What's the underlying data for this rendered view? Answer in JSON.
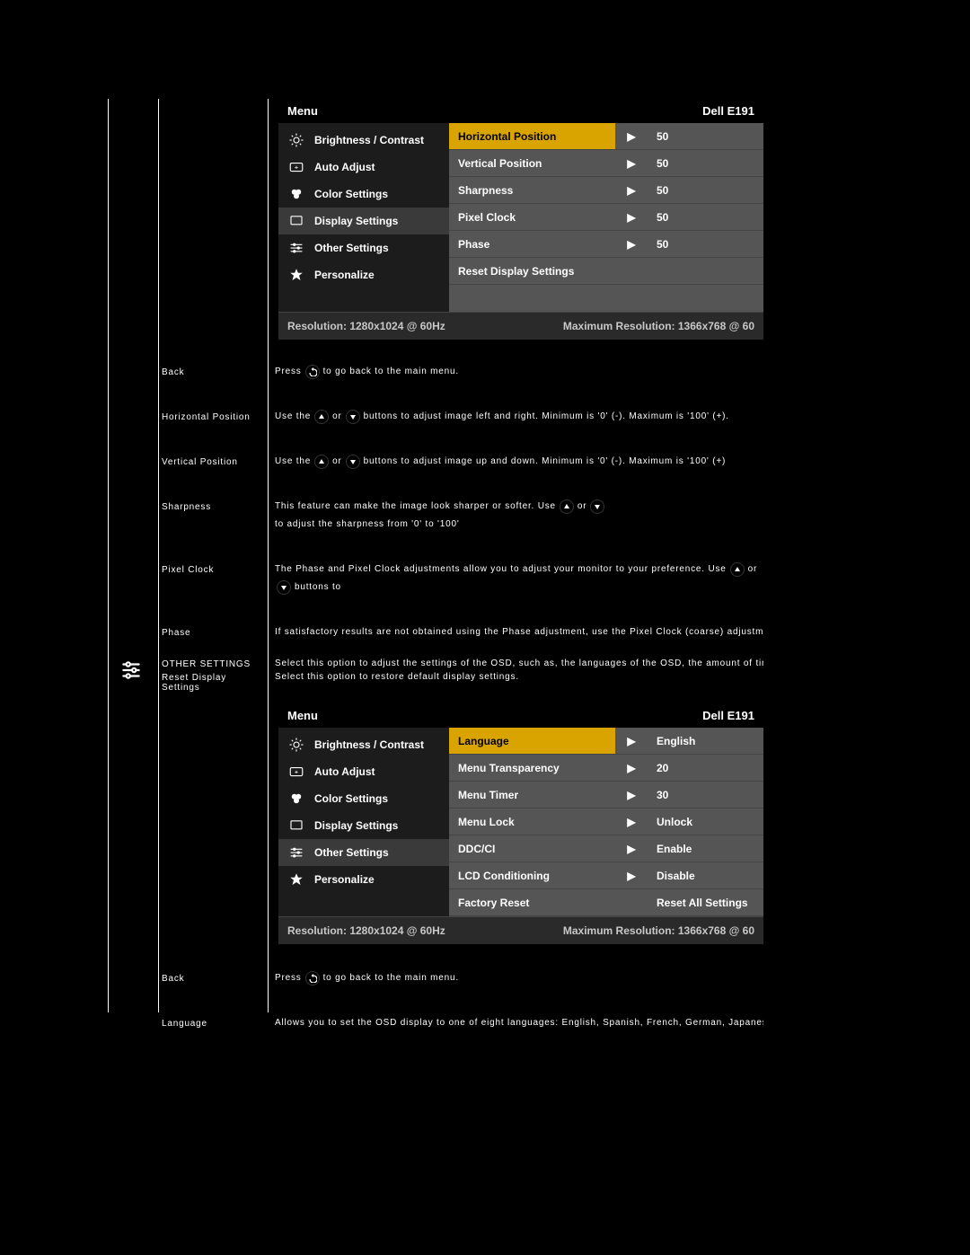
{
  "colors": {
    "page_bg": "#000000",
    "osd_bg": "#2a2a2a",
    "osd_left_bg": "#1c1c1c",
    "osd_right_bg": "#555555",
    "highlight_bg": "#d9a400",
    "highlight_text": "#000000",
    "text": "#ffffff",
    "footer_text": "#c8c8c8"
  },
  "osd_common": {
    "menu_label": "Menu",
    "model_label": "Dell E191",
    "footer_left": "Resolution: 1280x1024 @ 60Hz",
    "footer_right": "Maximum Resolution: 1366x768 @ 60",
    "left_items": [
      {
        "icon": "brightness",
        "label": "Brightness / Contrast"
      },
      {
        "icon": "auto",
        "label": "Auto Adjust"
      },
      {
        "icon": "color",
        "label": "Color Settings"
      },
      {
        "icon": "display",
        "label": "Display Settings"
      },
      {
        "icon": "other",
        "label": "Other Settings"
      },
      {
        "icon": "star",
        "label": "Personalize"
      }
    ]
  },
  "osd1": {
    "selected_index": 3,
    "right_items": [
      {
        "label": "Horizontal Position",
        "value": "50",
        "highlight": true,
        "arrow": true
      },
      {
        "label": "Vertical Position",
        "value": "50",
        "highlight": false,
        "arrow": true
      },
      {
        "label": "Sharpness",
        "value": "50",
        "highlight": false,
        "arrow": true
      },
      {
        "label": "Pixel Clock",
        "value": "50",
        "highlight": false,
        "arrow": true
      },
      {
        "label": "Phase",
        "value": "50",
        "highlight": false,
        "arrow": true
      },
      {
        "label": "Reset Display Settings",
        "value": "",
        "highlight": false,
        "arrow": false
      }
    ]
  },
  "osd2": {
    "selected_index": 4,
    "right_items": [
      {
        "label": "Language",
        "value": "English",
        "highlight": true,
        "arrow": true
      },
      {
        "label": "Menu Transparency",
        "value": "20",
        "highlight": false,
        "arrow": true
      },
      {
        "label": "Menu Timer",
        "value": "30",
        "highlight": false,
        "arrow": true
      },
      {
        "label": "Menu Lock",
        "value": "Unlock",
        "highlight": false,
        "arrow": true
      },
      {
        "label": "DDC/CI",
        "value": "Enable",
        "highlight": false,
        "arrow": true
      },
      {
        "label": "LCD Conditioning",
        "value": "Disable",
        "highlight": false,
        "arrow": true
      },
      {
        "label": "Factory Reset",
        "value": "Reset All Settings",
        "highlight": false,
        "arrow": false
      }
    ]
  },
  "descs1": [
    {
      "label": "Back",
      "segments": [
        {
          "t": "Press"
        },
        {
          "btn": "back"
        },
        {
          "t": " to go back to the main menu."
        }
      ]
    },
    {
      "label": "Horizontal Position",
      "segments": [
        {
          "t": "Use the "
        },
        {
          "btn": "up"
        },
        {
          "t": " or "
        },
        {
          "btn": "down"
        },
        {
          "t": " buttons to adjust image left and right. Minimum is '0' (-). Maximum is '100' (+)."
        }
      ]
    },
    {
      "label": "Vertical Position",
      "segments": [
        {
          "t": "Use the "
        },
        {
          "btn": "up"
        },
        {
          "t": " or "
        },
        {
          "btn": "down"
        },
        {
          "t": " buttons to adjust image up and down. Minimum is '0' (-). Maximum is '100' (+)"
        }
      ]
    },
    {
      "label": "Sharpness",
      "segments": [
        {
          "t": "This feature can make the image look sharper or softer. Use "
        },
        {
          "btn": "up"
        },
        {
          "t": " or "
        },
        {
          "btn": "down"
        },
        {
          "t": " to adjust the sharpness from '0' to '100'"
        }
      ]
    },
    {
      "label": "Pixel Clock",
      "segments": [
        {
          "t": "The Phase and Pixel Clock adjustments allow you to adjust your monitor to your preference. Use "
        },
        {
          "btn": "up"
        },
        {
          "t": " or "
        },
        {
          "btn": "down"
        },
        {
          "t": " buttons to "
        }
      ]
    },
    {
      "label": "Phase",
      "segments": [
        {
          "t": "If satisfactory results are not obtained using the Phase adjustment, use the Pixel Clock (coarse) adjustment and then "
        }
      ]
    },
    {
      "label": "Reset Display Settings",
      "segments": [
        {
          "t": "Select this option to restore default display settings."
        }
      ]
    }
  ],
  "other_settings_label": "OTHER SETTINGS",
  "other_settings_desc": "Select this option to adjust the settings of the OSD, such as, the languages of the OSD, the amount of time the menu r",
  "descs2": [
    {
      "label": "Back",
      "segments": [
        {
          "t": "Press"
        },
        {
          "btn": "back"
        },
        {
          "t": " to go back to the main menu."
        }
      ]
    },
    {
      "label": "Language",
      "segments": [
        {
          "t": "Allows you to set the OSD display to one of eight languages: English, Spanish, French, German, Japanese, Brazilian Po"
        }
      ]
    }
  ]
}
